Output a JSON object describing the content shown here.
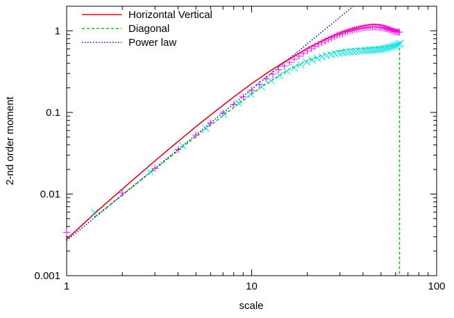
{
  "chart_data": {
    "type": "scatter",
    "xlabel": "scale",
    "ylabel": "2-nd order moment",
    "xscale": "log",
    "yscale": "log",
    "xlim": [
      1,
      100
    ],
    "ylim": [
      0.001,
      2
    ],
    "x_ticks": [
      1,
      10,
      100
    ],
    "x_tick_labels": [
      "1",
      "10",
      "100"
    ],
    "y_ticks": [
      0.001,
      0.01,
      0.1,
      1
    ],
    "y_tick_labels": [
      "0.001",
      "0.01",
      "0.1",
      "1"
    ],
    "grid": false,
    "legend_position": "top-left",
    "series": [
      {
        "name": "Horizontal Vertical",
        "kind": "line",
        "color": "#e8000b",
        "dash": "solid",
        "x": [
          1,
          1.5,
          2,
          3,
          4,
          5,
          6,
          8,
          10,
          12,
          15,
          18,
          20,
          25,
          30,
          35,
          40,
          45,
          50,
          55,
          60,
          63
        ],
        "y": [
          0.0028,
          0.0065,
          0.0115,
          0.0255,
          0.044,
          0.067,
          0.093,
          0.155,
          0.225,
          0.3,
          0.415,
          0.53,
          0.61,
          0.79,
          0.95,
          1.07,
          1.15,
          1.2,
          1.18,
          1.1,
          1.03,
          1.0
        ]
      },
      {
        "name": "Diagonal",
        "kind": "line",
        "color": "#00cc00",
        "dash": "dashed",
        "x": [
          1.414,
          2,
          2.828,
          4,
          5.657,
          8,
          11.31,
          16,
          20,
          25,
          30,
          35,
          40,
          45,
          50,
          55,
          60,
          62,
          63,
          63
        ],
        "y": [
          0.0052,
          0.0098,
          0.0182,
          0.034,
          0.063,
          0.115,
          0.205,
          0.34,
          0.43,
          0.52,
          0.57,
          0.6,
          0.61,
          0.62,
          0.63,
          0.65,
          0.68,
          0.7,
          0.72,
          0.001
        ]
      },
      {
        "name": "Power law",
        "kind": "line",
        "color": "#0000cc",
        "dash": "dotted",
        "x": [
          1,
          40
        ],
        "y": [
          0.0027,
          2.5
        ]
      },
      {
        "kind": "points",
        "marker": "plus",
        "color": "#ff00ff",
        "x": [
          1,
          2,
          3,
          4,
          5,
          6,
          7,
          8,
          9,
          10,
          11,
          12,
          13,
          14,
          15,
          16,
          17,
          18,
          19,
          20,
          21,
          22,
          23,
          24,
          25,
          26,
          27,
          28,
          29,
          30,
          31,
          32,
          33,
          34,
          35,
          36,
          37,
          38,
          39,
          40,
          41,
          42,
          43,
          44,
          45,
          46,
          47,
          48,
          49,
          50,
          51,
          52,
          53,
          54,
          55,
          56,
          57,
          58,
          59,
          60,
          61,
          62,
          63
        ],
        "y": [
          0.0034,
          0.0103,
          0.0207,
          0.035,
          0.053,
          0.074,
          0.098,
          0.125,
          0.155,
          0.187,
          0.221,
          0.257,
          0.294,
          0.332,
          0.371,
          0.41,
          0.449,
          0.489,
          0.529,
          0.568,
          0.607,
          0.645,
          0.682,
          0.718,
          0.753,
          0.786,
          0.818,
          0.849,
          0.878,
          0.905,
          0.93,
          0.954,
          0.976,
          0.996,
          1.015,
          1.032,
          1.047,
          1.061,
          1.073,
          1.083,
          1.092,
          1.099,
          1.105,
          1.109,
          1.112,
          1.113,
          1.113,
          1.11,
          1.106,
          1.1,
          1.092,
          1.082,
          1.07,
          1.057,
          1.042,
          1.027,
          1.012,
          0.998,
          0.986,
          0.976,
          0.969,
          0.965,
          0.963
        ]
      },
      {
        "kind": "points",
        "marker": "cross",
        "color": "#00e5ee",
        "x": [
          1.414,
          2.828,
          4.243,
          5.657,
          7.071,
          8.485,
          9.9,
          11.31,
          12.73,
          14.14,
          15.56,
          16.97,
          18.38,
          19.8,
          21.21,
          22.63,
          24.04,
          25.46,
          26.87,
          28.28,
          29.7,
          31.11,
          32.53,
          33.94,
          35.36,
          36.77,
          38.18,
          39.6,
          41.01,
          42.43,
          43.84,
          45.25,
          46.67,
          48.08,
          49.5,
          50.91,
          52.33,
          53.74,
          55.15,
          56.57,
          57.98,
          59.4,
          60.81,
          62.23,
          63.64
        ],
        "y": [
          0.0059,
          0.0187,
          0.039,
          0.064,
          0.095,
          0.13,
          0.167,
          0.206,
          0.245,
          0.284,
          0.32,
          0.354,
          0.385,
          0.413,
          0.438,
          0.46,
          0.479,
          0.496,
          0.51,
          0.522,
          0.532,
          0.54,
          0.547,
          0.553,
          0.558,
          0.562,
          0.566,
          0.569,
          0.572,
          0.575,
          0.578,
          0.581,
          0.585,
          0.589,
          0.594,
          0.6,
          0.607,
          0.615,
          0.624,
          0.634,
          0.645,
          0.657,
          0.67,
          0.684,
          0.699
        ]
      }
    ]
  }
}
